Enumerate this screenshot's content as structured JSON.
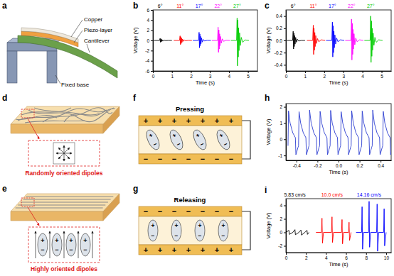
{
  "chart_letters": [
    "b",
    "c",
    "h",
    "i"
  ],
  "diagrams": {
    "a": {
      "letter": "a",
      "labels": {
        "copper": "Copper",
        "piezo": "Piezo-layer",
        "cantilever": "Cantilever",
        "base": "Fixed base"
      }
    },
    "d": {
      "letter": "d",
      "caption": "Randomly oriented dipoles"
    },
    "e": {
      "letter": "e",
      "caption": "Highly oriented dipoles"
    },
    "f": {
      "letter": "f",
      "title": "Pressing"
    },
    "g": {
      "letter": "g",
      "title": "Releasing"
    }
  },
  "signs": {
    "positive": "+",
    "negative": "−"
  },
  "chart_data": [
    {
      "type": "line",
      "x_label": "Time (s)",
      "y_label": "Voltage (V)",
      "xlim": [
        0,
        5.5
      ],
      "xticks": [
        0,
        1,
        2,
        3,
        4,
        5
      ],
      "ylim": [
        -6,
        6
      ],
      "yticks": [
        -6,
        -4,
        -2,
        0,
        2,
        4,
        6
      ],
      "series": [
        {
          "name": "6°",
          "color": "#000000",
          "x": [
            0.05,
            0.35,
            0.38,
            0.4,
            0.42,
            0.44,
            0.46,
            0.48,
            0.51,
            0.55,
            0.6,
            0.67,
            0.8,
            1.0
          ],
          "values": [
            0,
            0,
            0.4,
            -0.36,
            0.32,
            -0.26,
            0.2,
            -0.16,
            0.12,
            -0.08,
            0.05,
            -0.03,
            0.01,
            0
          ]
        },
        {
          "name": "11°",
          "color": "#ff0000",
          "x": [
            1.1,
            1.4,
            1.43,
            1.45,
            1.47,
            1.49,
            1.51,
            1.53,
            1.56,
            1.6,
            1.65,
            1.72,
            1.85,
            2.05
          ],
          "values": [
            0,
            0,
            0.9,
            -0.81,
            0.72,
            -0.59,
            0.45,
            -0.36,
            0.27,
            -0.18,
            0.11,
            -0.06,
            0.02,
            0
          ]
        },
        {
          "name": "17°",
          "color": "#0000ff",
          "x": [
            2.1,
            2.4,
            2.43,
            2.45,
            2.47,
            2.49,
            2.51,
            2.53,
            2.56,
            2.6,
            2.65,
            2.72,
            2.85,
            3.05
          ],
          "values": [
            0,
            0,
            1.6,
            -1.44,
            1.28,
            -1.04,
            0.8,
            -0.64,
            0.48,
            -0.32,
            0.19,
            -0.11,
            0.03,
            0
          ]
        },
        {
          "name": "22°",
          "color": "#ff00ff",
          "x": [
            3.1,
            3.4,
            3.43,
            3.45,
            3.47,
            3.49,
            3.51,
            3.53,
            3.56,
            3.6,
            3.65,
            3.72,
            3.85,
            4.05
          ],
          "values": [
            0,
            0,
            2.6,
            -2.34,
            2.08,
            -1.69,
            1.3,
            -1.04,
            0.78,
            -0.52,
            0.31,
            -0.18,
            0.05,
            0
          ]
        },
        {
          "name": "27°",
          "color": "#00cc00",
          "x": [
            4.1,
            4.4,
            4.43,
            4.45,
            4.47,
            4.49,
            4.51,
            4.53,
            4.56,
            4.6,
            4.65,
            4.72,
            4.85,
            5.05
          ],
          "values": [
            0,
            0,
            4.4,
            -5.0,
            4.0,
            -3.25,
            2.5,
            -2.0,
            1.5,
            -1.0,
            0.6,
            -0.35,
            0.1,
            0
          ]
        }
      ]
    },
    {
      "type": "line",
      "x_label": "Time (s)",
      "y_label": "Voltage (V)",
      "xlim": [
        0,
        5.5
      ],
      "xticks": [
        0,
        1,
        2,
        3,
        4,
        5
      ],
      "ylim": [
        -0.5,
        0.5
      ],
      "yticks": [
        -0.4,
        -0.2,
        {
          "value": 0,
          "label": "0.0"
        },
        0.2,
        0.4
      ],
      "series": [
        {
          "name": "6°",
          "color": "#000000",
          "x": [
            0.05,
            0.35,
            0.38,
            0.4,
            0.42,
            0.44,
            0.46,
            0.48,
            0.51,
            0.55,
            0.6,
            0.67,
            0.8,
            1.0
          ],
          "values": [
            0,
            0,
            0.15,
            -0.14,
            0.12,
            -0.1,
            0.08,
            -0.06,
            0.05,
            -0.03,
            0.02,
            -0.01,
            0,
            0
          ]
        },
        {
          "name": "11°",
          "color": "#ff0000",
          "x": [
            1.1,
            1.4,
            1.43,
            1.45,
            1.47,
            1.49,
            1.51,
            1.53,
            1.56,
            1.6,
            1.65,
            1.72,
            1.85,
            2.05
          ],
          "values": [
            0,
            0,
            0.25,
            -0.23,
            0.2,
            -0.16,
            0.13,
            -0.1,
            0.08,
            -0.05,
            0.03,
            -0.02,
            0.01,
            0
          ]
        },
        {
          "name": "17°",
          "color": "#0000ff",
          "x": [
            2.1,
            2.4,
            2.43,
            2.45,
            2.47,
            2.49,
            2.51,
            2.53,
            2.56,
            2.6,
            2.65,
            2.72,
            2.85,
            3.05
          ],
          "values": [
            0,
            0,
            0.3,
            -0.27,
            0.24,
            -0.2,
            0.15,
            -0.12,
            0.09,
            -0.06,
            0.04,
            -0.02,
            0.01,
            0
          ]
        },
        {
          "name": "22°",
          "color": "#ff00ff",
          "x": [
            3.1,
            3.4,
            3.43,
            3.45,
            3.47,
            3.49,
            3.51,
            3.53,
            3.56,
            3.6,
            3.65,
            3.72,
            3.85,
            4.05
          ],
          "values": [
            0,
            0,
            0.35,
            -0.32,
            0.28,
            -0.23,
            0.18,
            -0.14,
            0.11,
            -0.07,
            0.04,
            -0.02,
            0.01,
            0
          ]
        },
        {
          "name": "27°",
          "color": "#00cc00",
          "x": [
            4.1,
            4.4,
            4.43,
            4.45,
            4.47,
            4.49,
            4.51,
            4.53,
            4.56,
            4.6,
            4.65,
            4.72,
            4.85,
            5.05
          ],
          "values": [
            0,
            0,
            0.4,
            -0.36,
            0.32,
            -0.26,
            0.2,
            -0.16,
            0.12,
            -0.08,
            0.05,
            -0.03,
            0.01,
            0
          ]
        }
      ]
    },
    {
      "type": "line",
      "x_label": "Time (s)",
      "y_label": "Voltage (V)",
      "xlim": [
        -0.5,
        0.5
      ],
      "xticks": [
        -0.4,
        -0.2,
        {
          "value": 0,
          "label": "0.0"
        },
        0.2,
        0.4
      ],
      "ylim": [
        -1.3,
        2.2
      ],
      "yticks": [
        -1,
        0,
        1,
        2
      ],
      "series": [
        {
          "color": "#2a3cd0",
          "x": [
            -0.48,
            -0.475,
            -0.46,
            -0.435,
            -0.41,
            -0.405,
            -0.385,
            -0.38,
            -0.375,
            -0.36,
            -0.335,
            -0.31,
            -0.305,
            -0.285,
            -0.28,
            -0.275,
            -0.26,
            -0.235,
            -0.21,
            -0.205,
            -0.185,
            -0.18,
            -0.175,
            -0.16,
            -0.135,
            -0.11,
            -0.105,
            -0.085,
            -0.08,
            -0.075,
            -0.06,
            -0.035,
            -0.01,
            -0.005,
            0.015,
            0.02,
            0.025,
            0.04,
            0.065,
            0.09,
            0.095,
            0.115,
            0.12,
            0.125,
            0.14,
            0.165,
            0.19,
            0.195,
            0.215,
            0.22,
            0.225,
            0.24,
            0.265,
            0.29,
            0.295,
            0.315,
            0.32,
            0.325,
            0.34,
            0.365,
            0.39,
            0.395,
            0.415,
            0.42,
            0.425,
            0.44,
            0.465,
            0.49,
            0.495,
            0.515
          ],
          "values": [
            -0.4,
            1.75,
            1.0,
            0.4,
            0.1,
            -0.95,
            -0.5,
            -0.4,
            1.7,
            1.0,
            0.4,
            0.1,
            -0.95,
            -0.5,
            -0.4,
            1.8,
            1.0,
            0.4,
            0.1,
            -0.95,
            -0.5,
            -0.4,
            1.72,
            1.0,
            0.4,
            0.1,
            -0.95,
            -0.5,
            -0.4,
            1.78,
            1.0,
            0.4,
            0.1,
            -0.95,
            -0.5,
            -0.4,
            1.7,
            1.0,
            0.4,
            0.1,
            -0.95,
            -0.5,
            -0.4,
            1.76,
            1.0,
            0.4,
            0.1,
            -0.95,
            -0.5,
            -0.4,
            1.74,
            1.0,
            0.4,
            0.1,
            -0.95,
            -0.5,
            -0.4,
            1.8,
            1.0,
            0.4,
            0.1,
            -0.95,
            -0.5,
            -0.4,
            1.72,
            1.0,
            0.4,
            0.1,
            -0.95,
            -0.5
          ]
        }
      ]
    },
    {
      "type": "line",
      "x_label": "Time (s)",
      "y_label": "Voltage (V)",
      "xlim": [
        0,
        10.5
      ],
      "xticks": [
        0,
        2,
        4,
        6,
        8,
        10
      ],
      "ylim": [
        -3,
        5
      ],
      "yticks": [
        -2,
        0,
        2,
        4
      ],
      "series": [
        {
          "name": "5.83 cm/s",
          "color": "#000000",
          "x": [
            0,
            0.3,
            0.35,
            0.7,
            0.9,
            0.95,
            1.3,
            1.5,
            1.55,
            1.9,
            2.1,
            2.15,
            2.3
          ],
          "values": [
            0,
            0.3,
            -0.3,
            0,
            0.4,
            -0.35,
            0,
            0.35,
            -0.4,
            0,
            0.3,
            -0.3,
            0
          ]
        },
        {
          "name": "10.0 cm/s",
          "color": "#ff0000",
          "x": [
            3.0,
            3.55,
            3.6,
            3.65,
            3.75,
            4.55,
            4.6,
            4.65,
            4.75,
            5.55,
            5.6,
            5.65,
            5.75,
            6.25,
            6.3,
            6.35,
            6.5
          ],
          "values": [
            0,
            0,
            2.1,
            -1.6,
            0,
            0,
            2.3,
            -1.5,
            0,
            0,
            1.9,
            -1.7,
            0,
            0,
            1.5,
            -1.2,
            0
          ]
        },
        {
          "name": "14.16 cm/s",
          "color": "#0000ff",
          "x": [
            7.0,
            7.55,
            7.6,
            7.65,
            7.75,
            8.25,
            8.3,
            8.35,
            8.45,
            9.05,
            9.1,
            9.15,
            9.25,
            9.75,
            9.8,
            9.85,
            10.0
          ],
          "values": [
            0,
            0,
            3.8,
            -2.5,
            0,
            0,
            4.6,
            -2.2,
            0,
            0,
            4.2,
            -2.8,
            0,
            0,
            3.5,
            -2.0,
            0
          ]
        }
      ]
    }
  ]
}
